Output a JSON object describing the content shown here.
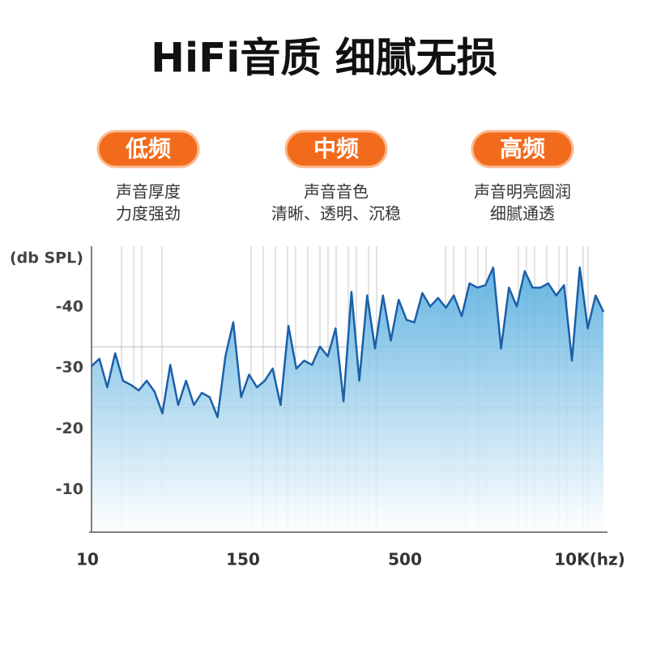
{
  "header": {
    "title": "HiFi音质 细腻无损"
  },
  "bands": [
    {
      "label": "低频",
      "lines": [
        "声音厚度",
        "力度强劲"
      ]
    },
    {
      "label": "中频",
      "lines": [
        "声音音色",
        "清晰、透明、沉稳"
      ]
    },
    {
      "label": "高频",
      "lines": [
        "声音明亮圆润",
        "细腻通透"
      ]
    }
  ],
  "chart_data": {
    "type": "area",
    "y_label": "(db SPL)",
    "x_labels": [
      "10",
      "150",
      "500",
      "10K(hz)"
    ],
    "color": "#1a5fa8",
    "ylim": [
      -3,
      -50
    ],
    "yticks": [
      -40,
      -30,
      -20,
      -10
    ],
    "grid": true,
    "values": [
      -30.3,
      -31.5,
      -26.8,
      -32.4,
      -27.9,
      -27.2,
      -26.3,
      -27.9,
      -26.1,
      -22.5,
      -30.5,
      -23.9,
      -27.9,
      -23.9,
      -25.9,
      -25.2,
      -21.9,
      -31.9,
      -37.5,
      -25.2,
      -28.9,
      -26.8,
      -27.9,
      -29.9,
      -23.9,
      -36.9,
      -29.9,
      -31.2,
      -30.5,
      -33.5,
      -31.9,
      -36.5,
      -24.5,
      -42.5,
      -27.9,
      -41.9,
      -33.2,
      -41.9,
      -34.5,
      -41.2,
      -37.9,
      -37.5,
      -42.3,
      -40.1,
      -41.5,
      -39.9,
      -41.9,
      -38.5,
      -43.9,
      -43.2,
      -43.6,
      -46.5,
      -33.2,
      -43.2,
      -40.1,
      -45.9,
      -43.2,
      -43.2,
      -43.9,
      -41.9,
      -43.6,
      -31.2,
      -46.5,
      -36.5,
      -41.9,
      -39.2
    ]
  }
}
